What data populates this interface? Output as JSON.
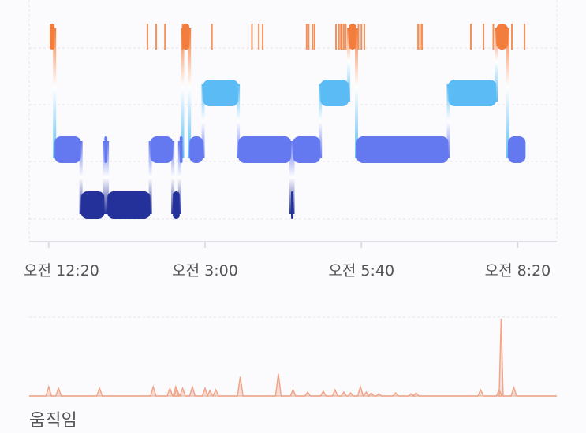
{
  "colors": {
    "awake": "#f27d3d",
    "rem": "#5bbcf5",
    "light": "#6478f0",
    "deep": "#25319a",
    "movement": "#f0a68a",
    "grid": "#e4e4ec",
    "axis": "#d7d7df"
  },
  "chart_data": [
    {
      "type": "hypnogram",
      "x_unit": "minutes since 오전 12:00",
      "xlim": [
        0,
        540
      ],
      "x_ticks": [
        {
          "t": 20,
          "label": "오전 12:20"
        },
        {
          "t": 180,
          "label": "오전 3:00"
        },
        {
          "t": 340,
          "label": "오전 5:40"
        },
        {
          "t": 500,
          "label": "오전 8:20"
        }
      ],
      "stage_order": [
        "awake",
        "rem",
        "light",
        "deep"
      ],
      "segments": [
        {
          "stage": "awake",
          "start": 21,
          "end": 26
        },
        {
          "stage": "light",
          "start": 26,
          "end": 53
        },
        {
          "stage": "deep",
          "start": 53,
          "end": 77
        },
        {
          "stage": "light",
          "start": 77,
          "end": 80
        },
        {
          "stage": "deep",
          "start": 80,
          "end": 124
        },
        {
          "stage": "light",
          "start": 124,
          "end": 147
        },
        {
          "stage": "deep",
          "start": 147,
          "end": 154
        },
        {
          "stage": "light",
          "start": 154,
          "end": 157
        },
        {
          "stage": "awake",
          "start": 157,
          "end": 164
        },
        {
          "stage": "light",
          "start": 164,
          "end": 178
        },
        {
          "stage": "rem",
          "start": 178,
          "end": 214
        },
        {
          "stage": "light",
          "start": 214,
          "end": 268
        },
        {
          "stage": "deep",
          "start": 268,
          "end": 270
        },
        {
          "stage": "light",
          "start": 270,
          "end": 298
        },
        {
          "stage": "rem",
          "start": 298,
          "end": 327
        },
        {
          "stage": "awake",
          "start": 327,
          "end": 335
        },
        {
          "stage": "light",
          "start": 335,
          "end": 429
        },
        {
          "stage": "rem",
          "start": 429,
          "end": 478
        },
        {
          "stage": "awake",
          "start": 478,
          "end": 490
        },
        {
          "stage": "light",
          "start": 490,
          "end": 508
        }
      ],
      "awake_ticks": [
        121,
        130,
        139,
        157,
        160,
        161,
        187,
        228,
        235,
        239,
        284,
        286,
        290,
        292,
        314,
        317,
        319,
        320,
        322,
        324,
        331,
        337,
        340,
        343,
        398,
        400,
        402,
        452,
        465,
        475,
        484,
        494,
        507
      ]
    },
    {
      "type": "area",
      "title": "움직임",
      "x_unit": "minutes since 오전 12:00",
      "xlim": [
        0,
        540
      ],
      "ylim": [
        0,
        100
      ],
      "x": [
        20,
        30,
        72,
        127,
        144,
        150,
        151,
        157,
        167,
        180,
        185,
        191,
        216,
        255,
        270,
        285,
        301,
        313,
        322,
        329,
        339,
        345,
        350,
        358,
        375,
        391,
        396,
        462,
        481,
        483,
        496
      ],
      "values": [
        12,
        10,
        10,
        12,
        10,
        12,
        9,
        10,
        12,
        10,
        7,
        8,
        25,
        29,
        8,
        5,
        6,
        8,
        5,
        4,
        12,
        5,
        4,
        3,
        4,
        3,
        4,
        8,
        8,
        100,
        11
      ]
    }
  ]
}
